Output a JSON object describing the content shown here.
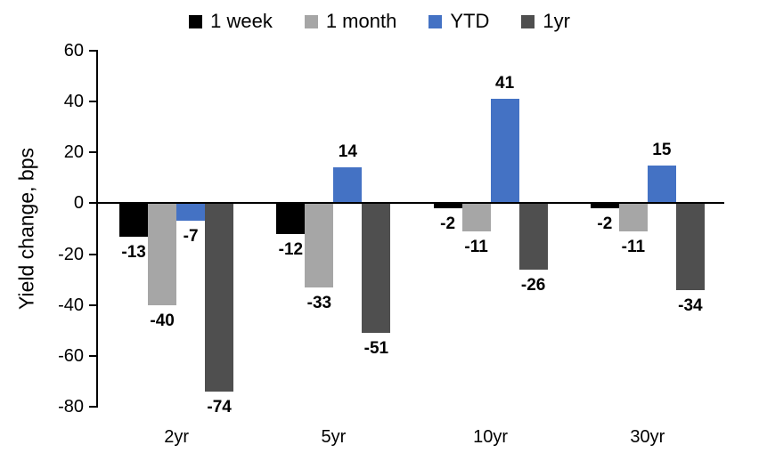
{
  "chart_data": {
    "type": "bar",
    "title": "",
    "ylabel": "Yield change, bps",
    "xlabel": "",
    "categories": [
      "2yr",
      "5yr",
      "10yr",
      "30yr"
    ],
    "series": [
      {
        "name": "1 week",
        "color": "#000000",
        "values": [
          -13,
          -12,
          -2,
          -2
        ]
      },
      {
        "name": "1 month",
        "color": "#A6A6A6",
        "values": [
          -40,
          -33,
          -11,
          -11
        ]
      },
      {
        "name": "YTD",
        "color": "#4472C4",
        "values": [
          -7,
          14,
          41,
          15
        ]
      },
      {
        "name": "1yr",
        "color": "#4F4F4F",
        "values": [
          -74,
          -51,
          -26,
          -34
        ]
      }
    ],
    "ylim": [
      -80,
      60
    ],
    "yticks": [
      60,
      40,
      20,
      0,
      -20,
      -40,
      -60,
      -80
    ],
    "grid": false,
    "legend_position": "top",
    "data_labels": true,
    "colors": {
      "axis": "#000000",
      "background": "#FFFFFF",
      "text": "#000000"
    }
  }
}
